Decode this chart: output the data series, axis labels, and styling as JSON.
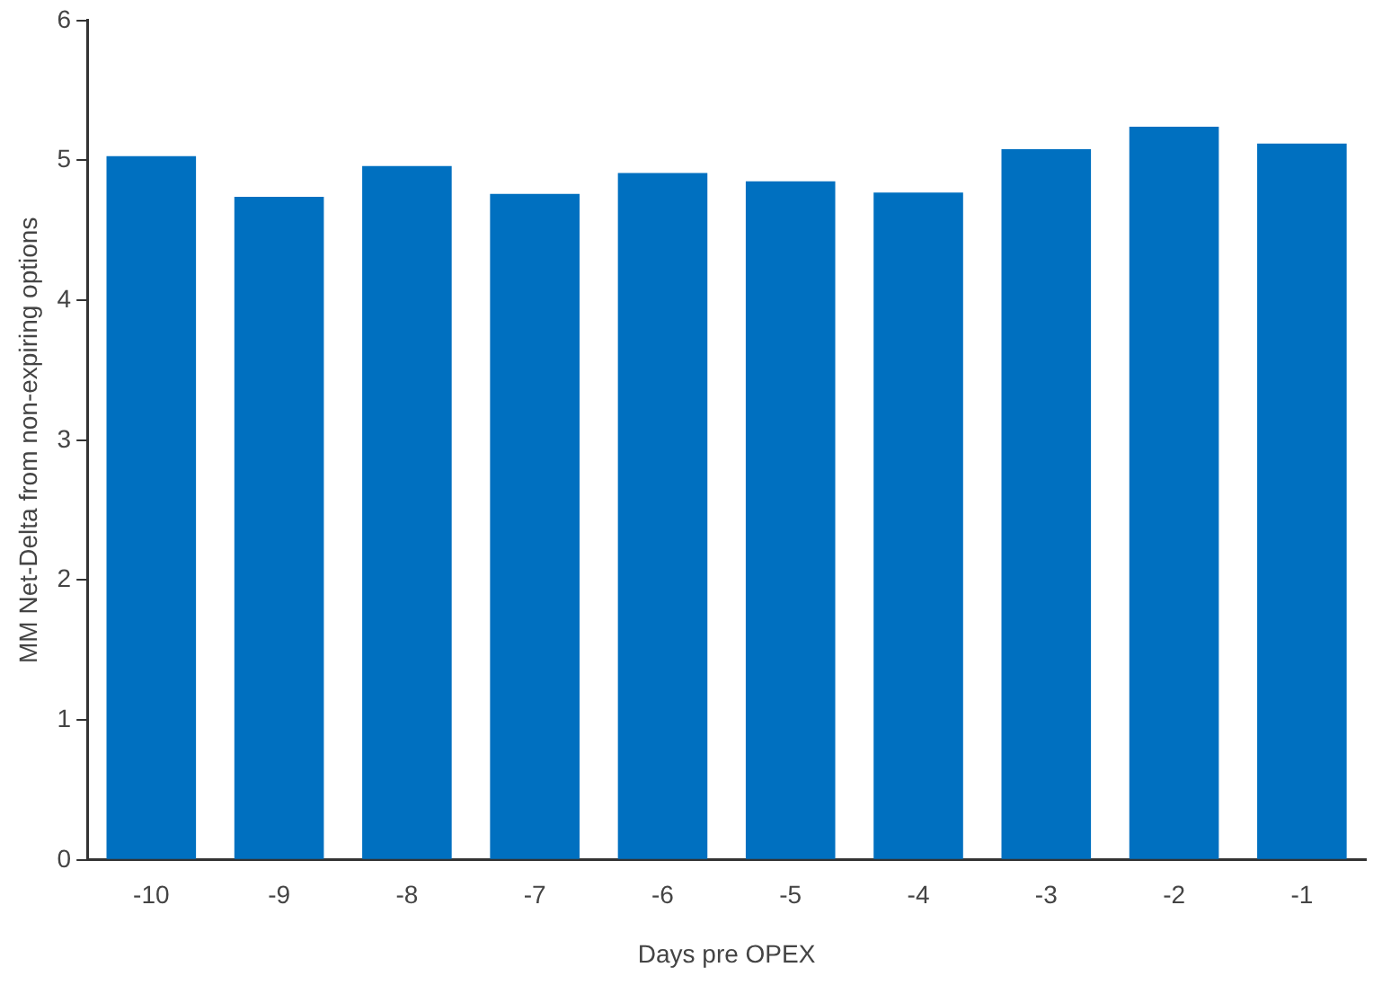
{
  "chart_data": {
    "type": "bar",
    "xlabel": "Days pre OPEX",
    "ylabel": "MM Net-Delta from non-expiring options",
    "categories": [
      "-10",
      "-9",
      "-8",
      "-7",
      "-6",
      "-5",
      "-4",
      "-3",
      "-2",
      "-1"
    ],
    "values": [
      5.03,
      4.74,
      4.96,
      4.76,
      4.91,
      4.85,
      4.77,
      5.08,
      5.24,
      5.12
    ],
    "color": "#0070c0",
    "ylim": [
      0,
      6
    ],
    "yticks": [
      0,
      1,
      2,
      3,
      4,
      5,
      6
    ],
    "grid": false
  }
}
